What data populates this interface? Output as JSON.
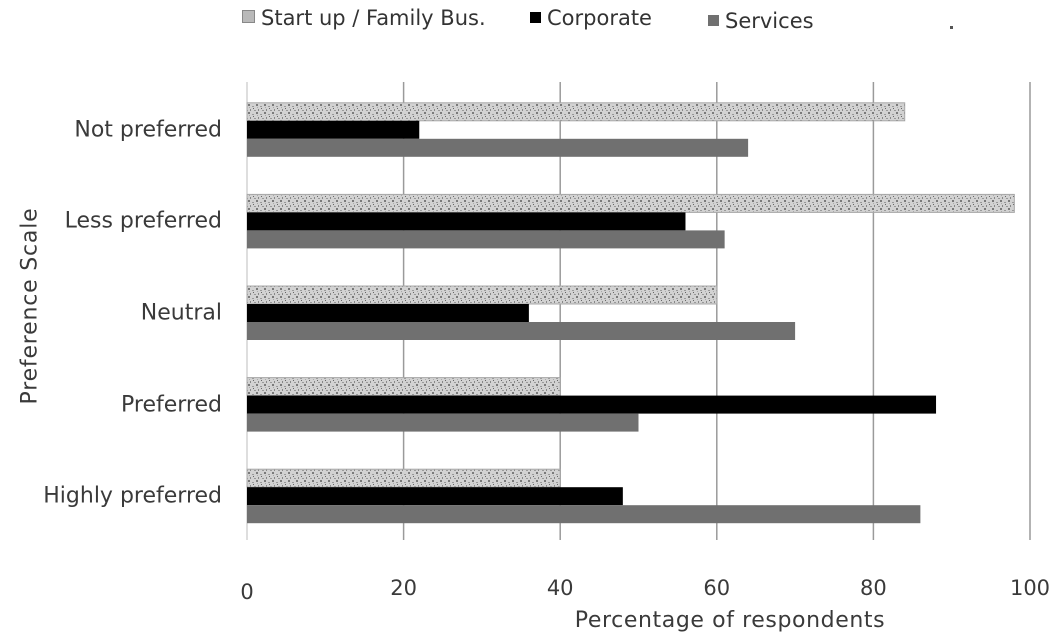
{
  "chart_data": {
    "type": "bar",
    "orientation": "horizontal",
    "categories": [
      "Not preferred",
      "Less preferred",
      "Neutral",
      "Preferred",
      "Highly preferred"
    ],
    "series": [
      {
        "name": "Start up / Family Bus.",
        "values": [
          84,
          98,
          60,
          40,
          40
        ],
        "color": "#c8c8c8",
        "pattern": "speckled"
      },
      {
        "name": "Corporate",
        "values": [
          22,
          56,
          36,
          88,
          48
        ],
        "color": "#000000"
      },
      {
        "name": "Services",
        "values": [
          64,
          61,
          70,
          50,
          86
        ],
        "color": "#707070"
      }
    ],
    "xlabel": "Percentage of respondents",
    "ylabel": "Preference  Scale",
    "xlim": [
      0,
      100
    ],
    "x_ticks": [
      "0",
      "20",
      "40",
      "60",
      "80",
      "100"
    ],
    "grid": "vertical",
    "legend_position": "top"
  }
}
